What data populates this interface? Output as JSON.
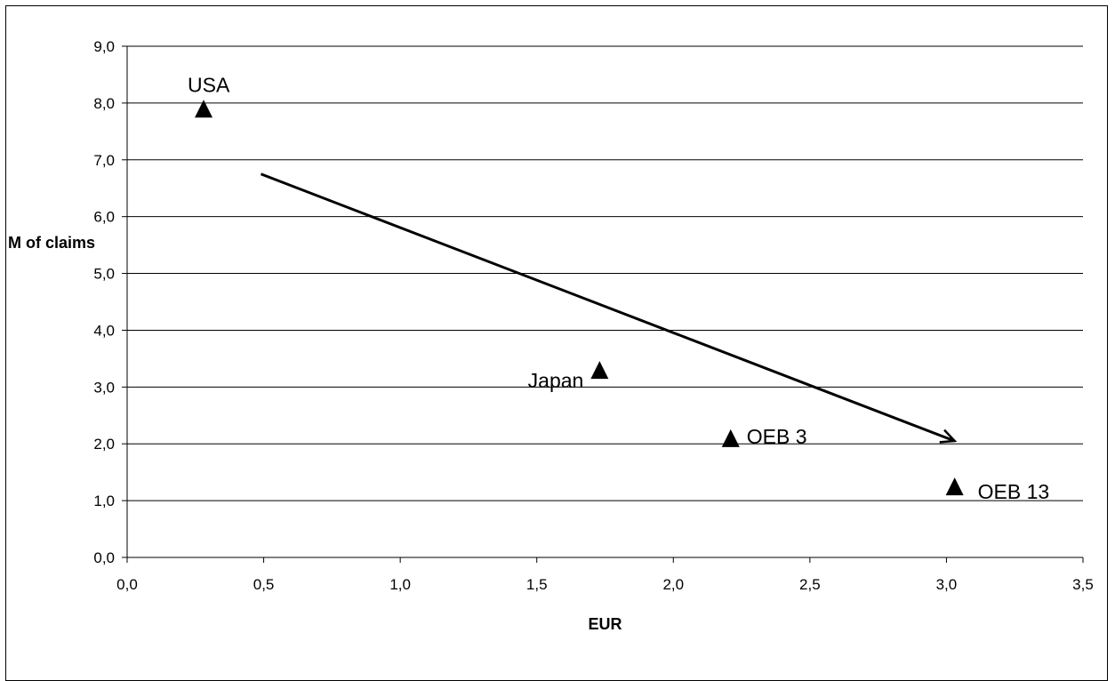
{
  "chart_data": {
    "type": "scatter",
    "title": "",
    "xlabel": "EUR",
    "ylabel": "M of claims",
    "xlim": [
      0,
      3.5
    ],
    "ylim": [
      0,
      9
    ],
    "x_ticks": [
      "0,0",
      "0,5",
      "1,0",
      "1,5",
      "2,0",
      "2,5",
      "3,0",
      "3,5"
    ],
    "y_ticks": [
      "0,0",
      "1,0",
      "2,0",
      "3,0",
      "4,0",
      "5,0",
      "6,0",
      "7,0",
      "8,0",
      "9,0"
    ],
    "grid": "horizontal",
    "marker": "triangle",
    "points": [
      {
        "label": "USA",
        "x": 0.28,
        "y": 7.9
      },
      {
        "label": "Japan",
        "x": 1.73,
        "y": 3.3
      },
      {
        "label": "OEB 3",
        "x": 2.21,
        "y": 2.1
      },
      {
        "label": "OEB 13",
        "x": 3.03,
        "y": 1.25
      }
    ],
    "trend_arrow": {
      "from": {
        "x": 0.49,
        "y": 6.75
      },
      "to": {
        "x": 3.03,
        "y": 2.05
      }
    },
    "colors": {
      "marker": "#000000",
      "grid": "#000000",
      "arrow": "#000000"
    }
  }
}
